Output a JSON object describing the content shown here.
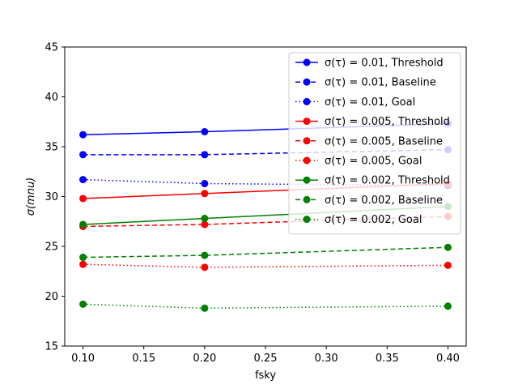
{
  "chart_data": {
    "type": "line",
    "title": "",
    "xlabel": "fsky",
    "ylabel": "σ(mnu)",
    "xlim": [
      0.085,
      0.415
    ],
    "ylim": [
      15,
      45
    ],
    "x_ticks": [
      0.1,
      0.15,
      0.2,
      0.25,
      0.3,
      0.35,
      0.4
    ],
    "x_tick_labels": [
      "0.10",
      "0.15",
      "0.20",
      "0.25",
      "0.30",
      "0.35",
      "0.40"
    ],
    "y_ticks": [
      15,
      20,
      25,
      30,
      35,
      40,
      45
    ],
    "y_tick_labels": [
      "15",
      "20",
      "25",
      "30",
      "35",
      "40",
      "45"
    ],
    "x": [
      0.1,
      0.2,
      0.4
    ],
    "grid": false,
    "legend_position": "top-right",
    "series": [
      {
        "name": "σ(τ) = 0.01, Threshold",
        "color": "#0000ff",
        "style": "solid",
        "values": [
          36.2,
          36.5,
          37.3
        ]
      },
      {
        "name": "σ(τ) = 0.01, Baseline",
        "color": "#0000ff",
        "style": "dashed",
        "values": [
          34.2,
          34.2,
          34.7
        ]
      },
      {
        "name": "σ(τ) = 0.01, Goal",
        "color": "#0000ff",
        "style": "dotted",
        "values": [
          31.7,
          31.3,
          31.1
        ]
      },
      {
        "name": "σ(τ) = 0.005, Threshold",
        "color": "#ff0000",
        "style": "solid",
        "values": [
          29.8,
          30.3,
          31.3
        ]
      },
      {
        "name": "σ(τ) = 0.005, Baseline",
        "color": "#ff0000",
        "style": "dashed",
        "values": [
          27.0,
          27.2,
          28.0
        ]
      },
      {
        "name": "σ(τ) = 0.005, Goal",
        "color": "#ff0000",
        "style": "dotted",
        "values": [
          23.2,
          22.9,
          23.1
        ]
      },
      {
        "name": "σ(τ) = 0.002, Threshold",
        "color": "#008000",
        "style": "solid",
        "values": [
          27.2,
          27.8,
          29.0
        ]
      },
      {
        "name": "σ(τ) = 0.002, Baseline",
        "color": "#008000",
        "style": "dashed",
        "values": [
          23.9,
          24.1,
          24.9
        ]
      },
      {
        "name": "σ(τ) = 0.002, Goal",
        "color": "#008000",
        "style": "dotted",
        "values": [
          19.2,
          18.8,
          19.0
        ]
      }
    ]
  }
}
